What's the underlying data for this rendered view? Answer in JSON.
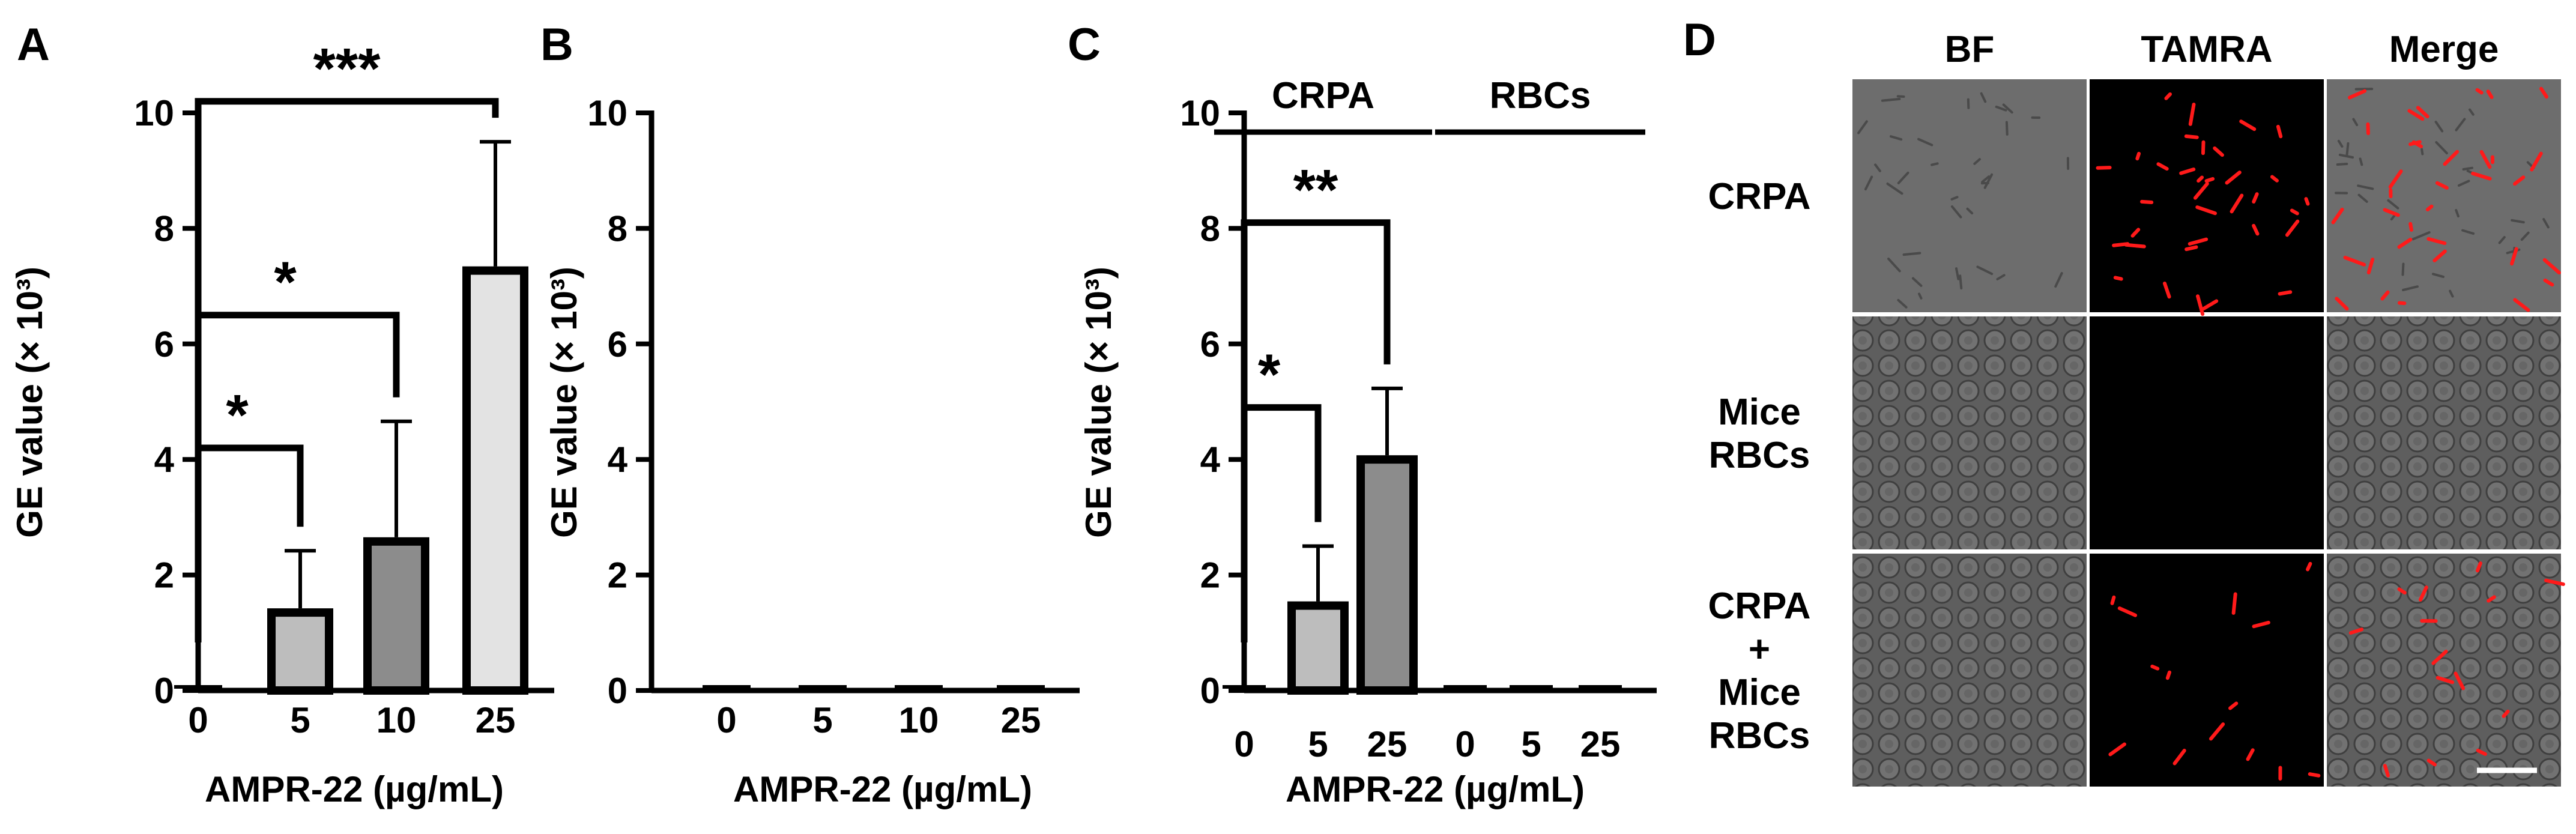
{
  "chart_data": [
    {
      "panel": "A",
      "type": "bar",
      "categories": [
        "0",
        "5",
        "10",
        "25"
      ],
      "values": [
        0,
        1.35,
        2.58,
        7.27
      ],
      "errors": [
        0,
        1.07,
        2.08,
        2.23
      ],
      "bar_colors": [
        "#ffffff",
        "#bdbdbd",
        "#8c8c8c",
        "#e3e3e3"
      ],
      "xlabel": "AMPR-22 (µg/mL)",
      "ylabel": "GE value (× 10³)",
      "ylim": [
        0,
        10
      ],
      "yticks": [
        "0",
        "2",
        "4",
        "6",
        "8",
        "10"
      ],
      "significance": [
        {
          "from": 0,
          "to": 1,
          "label": "*",
          "y": 4.2
        },
        {
          "from": 0,
          "to": 2,
          "label": "*",
          "y": 6.5
        },
        {
          "from": 0,
          "to": 3,
          "label": "***",
          "y": 10.2
        }
      ]
    },
    {
      "panel": "B",
      "type": "bar",
      "categories": [
        "0",
        "5",
        "10",
        "25"
      ],
      "values": [
        0,
        0,
        0,
        0
      ],
      "errors": [
        0,
        0,
        0,
        0
      ],
      "bar_colors": [
        "#ffffff",
        "#ffffff",
        "#ffffff",
        "#ffffff"
      ],
      "xlabel": "AMPR-22 (µg/mL)",
      "ylabel": "GE value (× 10³)",
      "ylim": [
        0,
        10
      ],
      "yticks": [
        "0",
        "2",
        "4",
        "6",
        "8",
        "10"
      ],
      "significance": []
    },
    {
      "panel": "C",
      "type": "bar",
      "categories": [
        "0",
        "5",
        "25",
        "0",
        "5",
        "25"
      ],
      "groups": [
        {
          "label": "CRPA",
          "from": 0,
          "to": 2
        },
        {
          "label": "RBCs",
          "from": 3,
          "to": 5
        }
      ],
      "values": [
        0,
        1.47,
        4.0,
        0,
        0,
        0
      ],
      "errors": [
        0,
        1.03,
        1.23,
        0,
        0,
        0
      ],
      "bar_colors": [
        "#ffffff",
        "#bdbdbd",
        "#8c8c8c",
        "#ffffff",
        "#ffffff",
        "#ffffff"
      ],
      "xlabel": "AMPR-22 (µg/mL)",
      "ylabel": "GE value (× 10³)",
      "ylim": [
        0,
        10
      ],
      "yticks": [
        "0",
        "2",
        "4",
        "6",
        "8",
        "10"
      ],
      "significance": [
        {
          "from": 0,
          "to": 1,
          "label": "*",
          "y": 4.9
        },
        {
          "from": 0,
          "to": 2,
          "label": "**",
          "y": 8.1
        }
      ]
    }
  ],
  "panel_d": {
    "letter": "D",
    "columns": [
      "BF",
      "TAMRA",
      "Merge"
    ],
    "rows": [
      [
        "CRPA"
      ],
      [
        "Mice",
        "RBCs"
      ],
      [
        "CRPA",
        "+",
        "Mice",
        "RBCs"
      ]
    ]
  }
}
